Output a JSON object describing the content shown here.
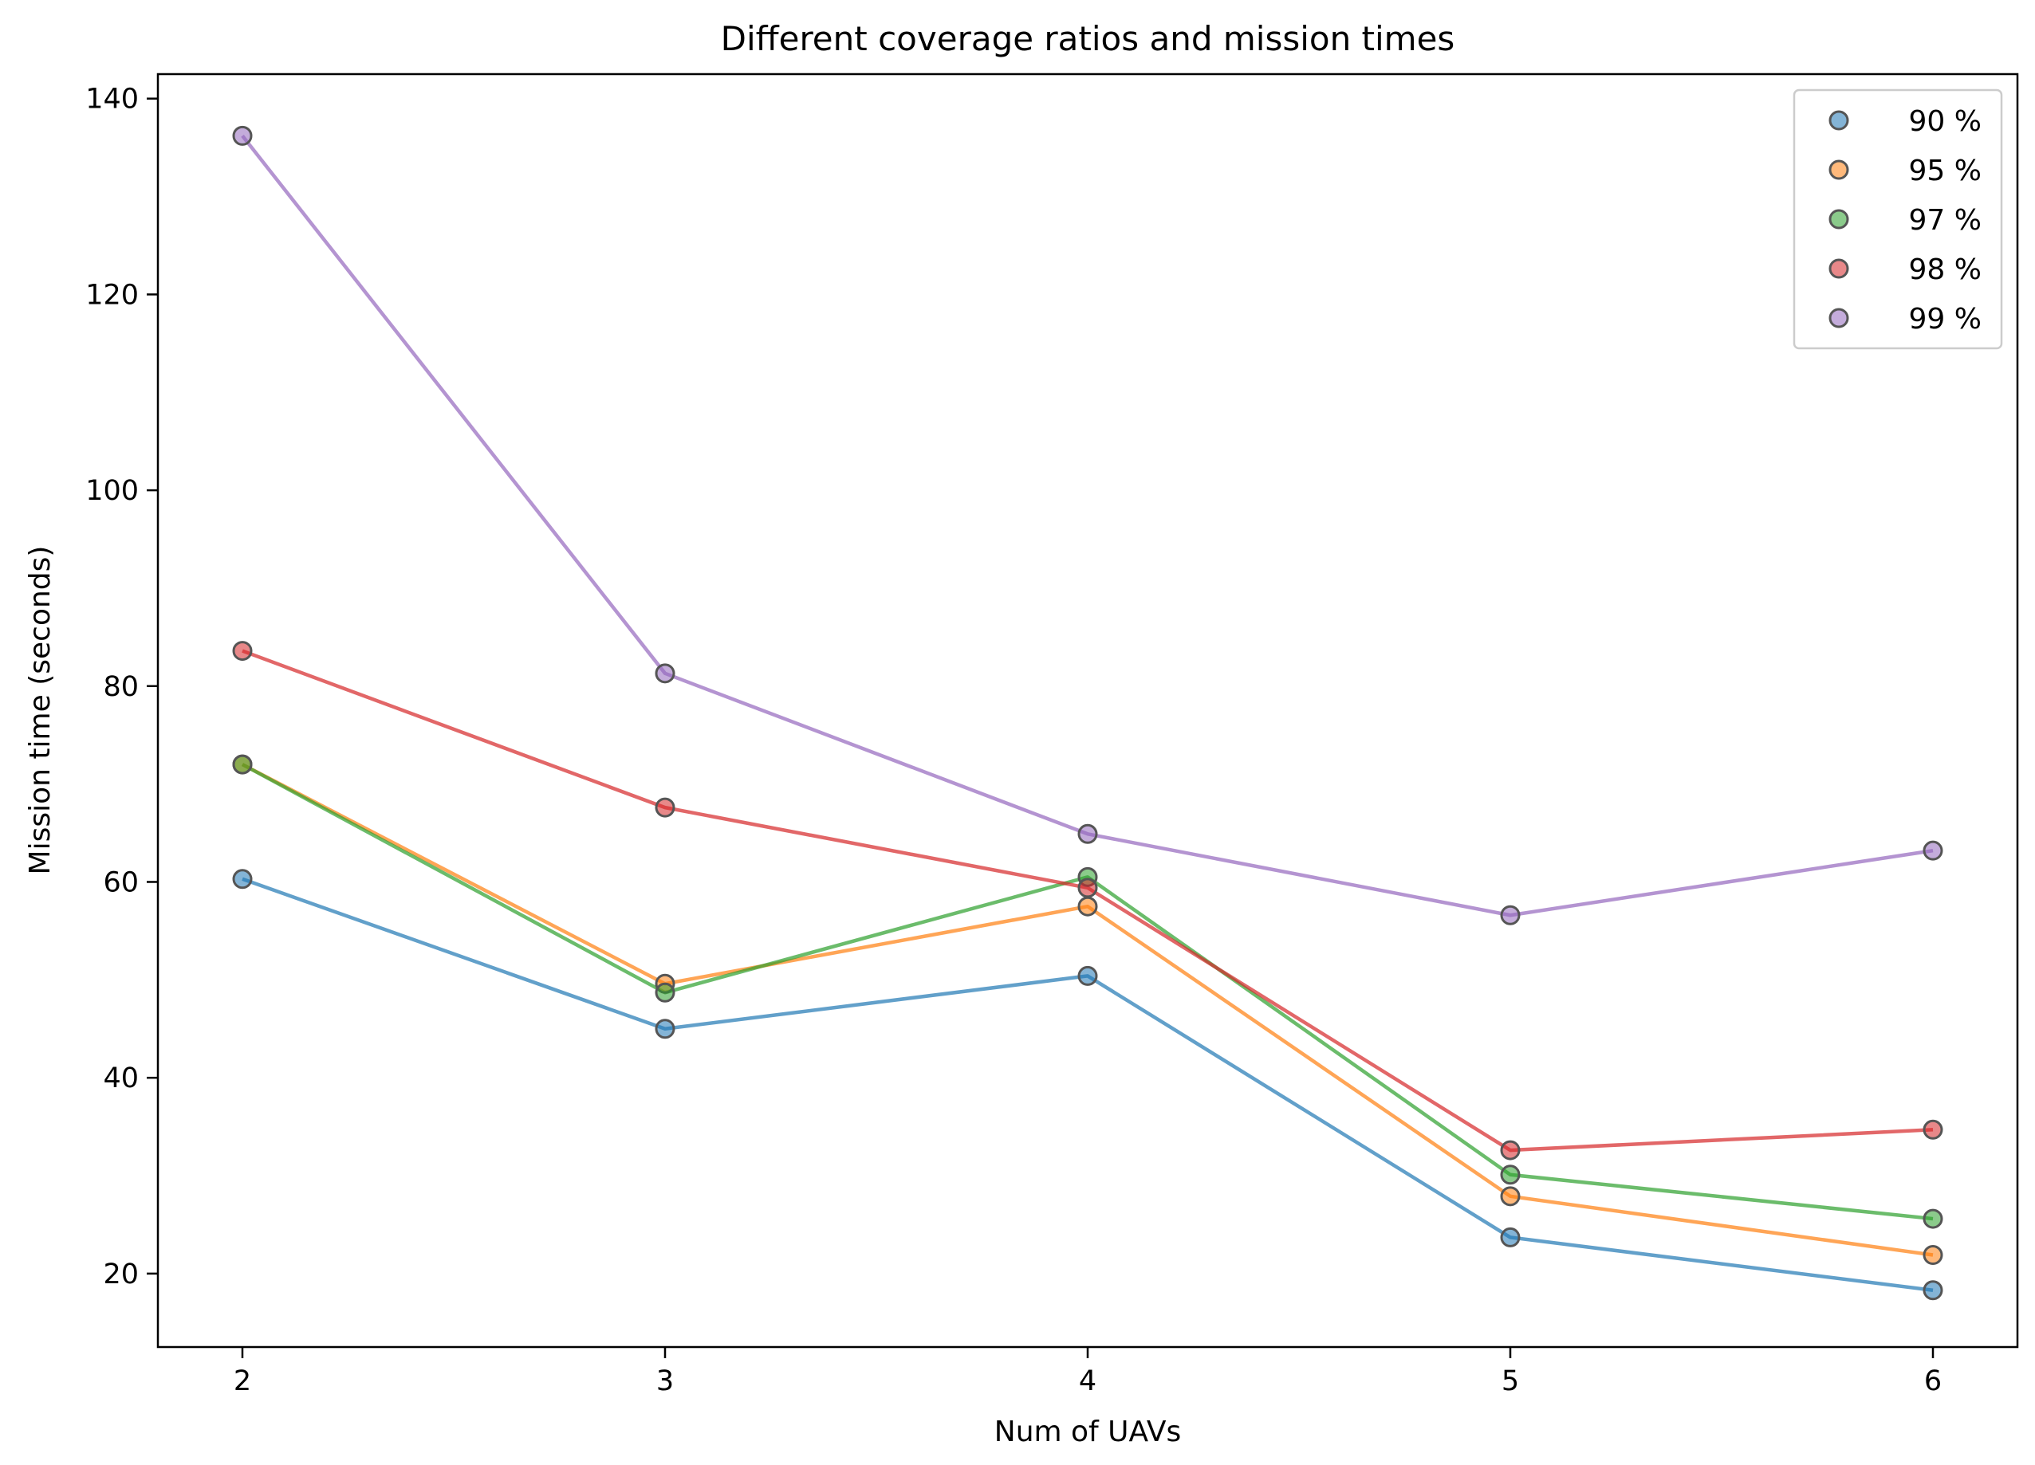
{
  "chart_data": {
    "type": "line",
    "title": "Different coverage ratios and mission times",
    "xlabel": "Num of UAVs",
    "ylabel": "Mission time (seconds)",
    "x": [
      2,
      3,
      4,
      5,
      6
    ],
    "xticks": [
      "2",
      "3",
      "4",
      "5",
      "6"
    ],
    "yticks": [
      "20",
      "40",
      "60",
      "80",
      "100",
      "120",
      "140"
    ],
    "xlim": [
      1.8,
      6.2
    ],
    "ylim": [
      12.5,
      142.5
    ],
    "grid": false,
    "legend_position": "top-right",
    "markers": "circle",
    "marker_edge_color": "#555555",
    "series": [
      {
        "name": "90 %",
        "color": "#1f77b4",
        "values": [
          60.3,
          45.0,
          50.4,
          23.7,
          18.3
        ]
      },
      {
        "name": "95 %",
        "color": "#ff7f0e",
        "values": [
          72.0,
          49.6,
          57.5,
          27.9,
          21.9
        ]
      },
      {
        "name": "97 %",
        "color": "#2ca02c",
        "values": [
          72.0,
          48.7,
          60.5,
          30.1,
          25.6
        ]
      },
      {
        "name": "98 %",
        "color": "#d62728",
        "values": [
          83.6,
          67.6,
          59.4,
          32.6,
          34.7
        ]
      },
      {
        "name": "99 %",
        "color": "#9467bd",
        "values": [
          136.2,
          81.3,
          64.9,
          56.6,
          63.2
        ]
      }
    ]
  }
}
